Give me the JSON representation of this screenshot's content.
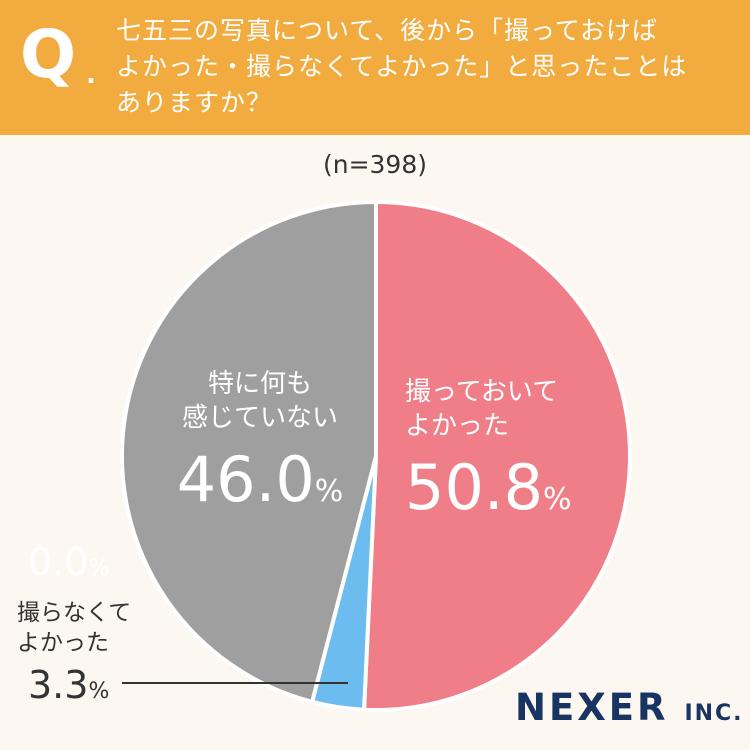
{
  "header": {
    "q_mark": "Q",
    "q_dot": ".",
    "question_lines": [
      "七五三の写真について、後から「撮っておけば",
      "よかった・撮らなくてよかった」と思ったことは",
      "ありますか？"
    ]
  },
  "sample_size": "(n=398)",
  "chart_data": {
    "type": "pie",
    "start": "top",
    "direction": "clockwise",
    "slices": [
      {
        "label": "撮っておいてよかった",
        "label_lines": [
          "撮っておいて",
          "よかった"
        ],
        "value": 50.8,
        "value_text": "50.8",
        "color": "#ef7e88"
      },
      {
        "label": "撮らなくてよかった",
        "label_lines": [
          "撮らなくて",
          "よかった"
        ],
        "value": 3.3,
        "value_text": "3.3",
        "color": "#6cbcef"
      },
      {
        "label": "",
        "label_lines": [],
        "value": 0.0,
        "value_text": "0.0",
        "color": "#9a9a9a"
      },
      {
        "label": "特に何も感じていない",
        "label_lines": [
          "特に何も",
          "感じていない"
        ],
        "value": 46.0,
        "value_text": "46.0",
        "color": "#9f9f9f"
      }
    ],
    "percent_sign": "%"
  },
  "brand": {
    "name": "NEXER",
    "suffix": "INC."
  },
  "colors": {
    "header_bg": "#f2ab3f",
    "page_bg": "#fcf8f1",
    "brand": "#173462"
  }
}
